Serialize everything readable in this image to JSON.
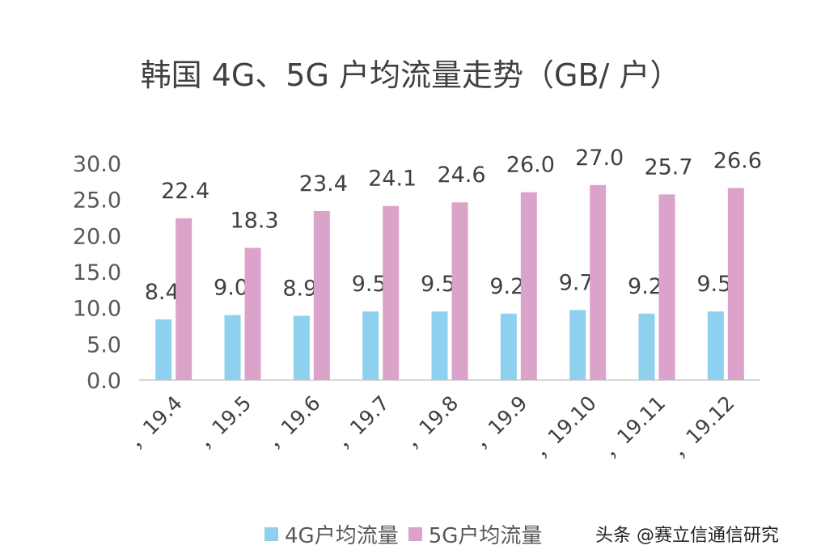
{
  "chart_data": {
    "type": "bar",
    "title": "韩国 4G、5G 户均流量走势（GB/ 户）",
    "categories": [
      "，19.4",
      "，19.5",
      "，19.6",
      "，19.7",
      "，19.8",
      "，19.9",
      "，19.10",
      "，19.11",
      "，19.12"
    ],
    "series": [
      {
        "name": "4G户均流量",
        "color": "#8fd0ee",
        "values": [
          8.4,
          9.0,
          8.9,
          9.5,
          9.5,
          9.2,
          9.7,
          9.2,
          9.5
        ]
      },
      {
        "name": "5G户均流量",
        "color": "#dca3ca",
        "values": [
          22.4,
          18.3,
          23.4,
          24.1,
          24.6,
          26.0,
          27.0,
          25.7,
          26.6
        ]
      }
    ],
    "ylim": [
      0,
      30
    ],
    "yticks": [
      "0.0",
      "5.0",
      "10.0",
      "15.0",
      "20.0",
      "25.0",
      "30.0"
    ],
    "xlabel": "",
    "ylabel": "",
    "grid": false,
    "legend": "bottom"
  },
  "watermark": "头条 @赛立信通信研究"
}
